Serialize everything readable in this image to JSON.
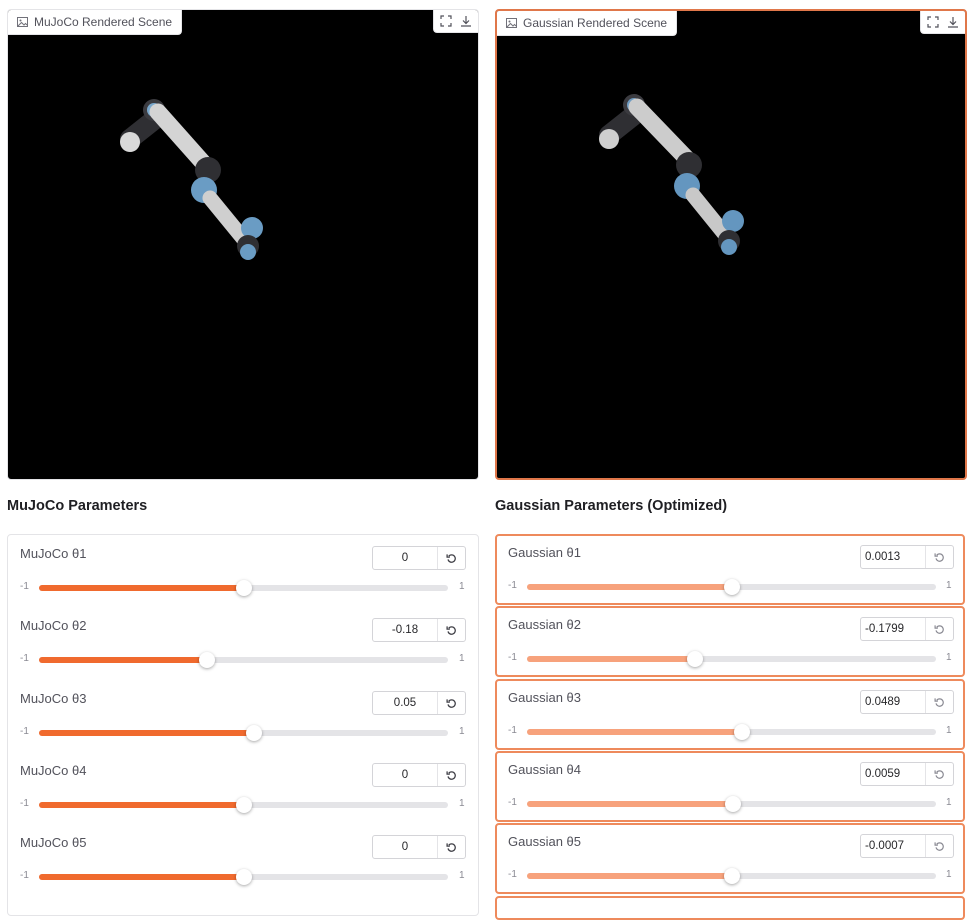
{
  "left_scene": {
    "label": "MuJoCo Rendered Scene"
  },
  "right_scene": {
    "label": "Gaussian Rendered Scene"
  },
  "mujoco": {
    "title": "MuJoCo Parameters",
    "sliders": [
      {
        "label": "MuJoCo θ1",
        "value": "0",
        "min": "-1",
        "max": "1",
        "fraction": 0.5
      },
      {
        "label": "MuJoCo θ2",
        "value": "-0.18",
        "min": "-1",
        "max": "1",
        "fraction": 0.41
      },
      {
        "label": "MuJoCo θ3",
        "value": "0.05",
        "min": "-1",
        "max": "1",
        "fraction": 0.525
      },
      {
        "label": "MuJoCo θ4",
        "value": "0",
        "min": "-1",
        "max": "1",
        "fraction": 0.5
      },
      {
        "label": "MuJoCo θ5",
        "value": "0",
        "min": "-1",
        "max": "1",
        "fraction": 0.5
      }
    ]
  },
  "gaussian": {
    "title": "Gaussian Parameters (Optimized)",
    "sliders": [
      {
        "label": "Gaussian θ1",
        "value": "0.0013",
        "min": "-1",
        "max": "1",
        "fraction": 0.5
      },
      {
        "label": "Gaussian θ2",
        "value": "-0.1799",
        "min": "-1",
        "max": "1",
        "fraction": 0.41
      },
      {
        "label": "Gaussian θ3",
        "value": "0.0489",
        "min": "-1",
        "max": "1",
        "fraction": 0.525
      },
      {
        "label": "Gaussian θ4",
        "value": "0.0059",
        "min": "-1",
        "max": "1",
        "fraction": 0.503
      },
      {
        "label": "Gaussian θ5",
        "value": "-0.0007",
        "min": "-1",
        "max": "1",
        "fraction": 0.5
      }
    ]
  },
  "icons": {
    "image": "image-icon",
    "fullscreen": "fullscreen-icon",
    "download": "download-icon",
    "reset": "reset-icon"
  },
  "colors": {
    "accent": "#f06a2e",
    "accent_light": "#f7a27c",
    "active_border": "#ee8a5c"
  }
}
